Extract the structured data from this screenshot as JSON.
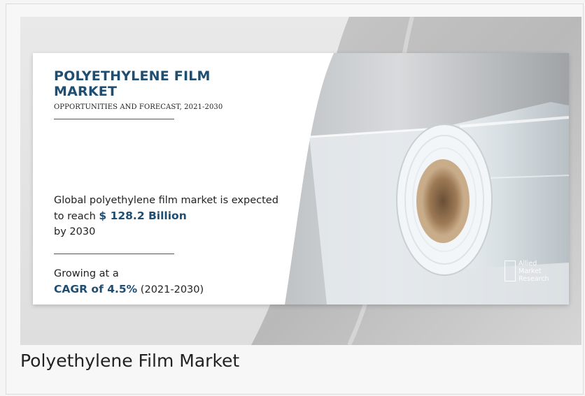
{
  "banner": {
    "title": "POLYETHYLENE FILM MARKET",
    "subtitle": "OPPORTUNITIES AND FORECAST, 2021-2030",
    "stat_pre": "Global polyethylene film market is expected to reach ",
    "stat_value": "$ 128.2 Billion",
    "stat_post": " by 2030",
    "growth_pre": "Growing at a",
    "growth_value": "CAGR of 4.5%",
    "growth_post": " (2021-2030)"
  },
  "logo": {
    "line1": "Allied",
    "line2": "Market",
    "line3": "Research"
  },
  "caption": "Polyethylene Film Market",
  "colors": {
    "accent": "#1f4e73",
    "text": "#222222",
    "background": "#f7f7f7"
  }
}
